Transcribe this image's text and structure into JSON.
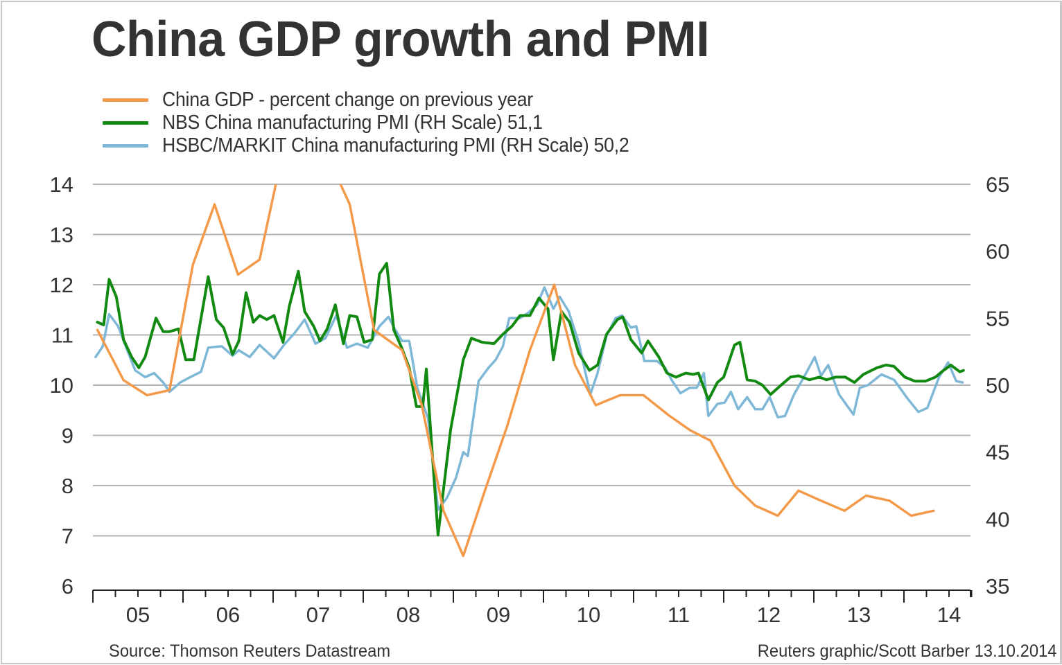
{
  "chart_data": {
    "type": "line",
    "title": "China GDP growth and PMI",
    "xlabel": "",
    "ylabel": "",
    "x_range": [
      2005.0,
      2014.8
    ],
    "x_tick_labels": [
      "05",
      "06",
      "07",
      "08",
      "09",
      "10",
      "11",
      "12",
      "13",
      "14"
    ],
    "x_tick_years": [
      2005,
      2006,
      2007,
      2008,
      2009,
      2010,
      2011,
      2012,
      2013,
      2014
    ],
    "y_left": {
      "range": [
        6,
        14
      ],
      "ticks": [
        "6",
        "7",
        "8",
        "9",
        "10",
        "11",
        "12",
        "13",
        "14"
      ]
    },
    "y_right": {
      "range": [
        35,
        65
      ],
      "ticks": [
        "35",
        "40",
        "45",
        "50",
        "55",
        "60",
        "65"
      ]
    },
    "grid": true,
    "legend_position": "top-left",
    "series": [
      {
        "name": "China GDP - percent change on previous year",
        "axis": "left",
        "color": "#f39a4a",
        "points": [
          [
            2005.05,
            11.1
          ],
          [
            2005.34,
            10.1
          ],
          [
            2005.6,
            9.8
          ],
          [
            2005.85,
            9.9
          ],
          [
            2006.11,
            12.4
          ],
          [
            2006.35,
            13.6
          ],
          [
            2006.61,
            12.2
          ],
          [
            2006.85,
            12.5
          ],
          [
            2007.15,
            15.0
          ],
          [
            2007.4,
            15.0
          ],
          [
            2007.62,
            14.5
          ],
          [
            2007.85,
            13.6
          ],
          [
            2008.12,
            11.1
          ],
          [
            2008.43,
            10.7
          ],
          [
            2008.65,
            9.6
          ],
          [
            2008.89,
            7.5
          ],
          [
            2009.11,
            6.6
          ],
          [
            2009.35,
            7.9
          ],
          [
            2009.6,
            9.2
          ],
          [
            2009.85,
            10.7
          ],
          [
            2010.12,
            12.0
          ],
          [
            2010.35,
            10.4
          ],
          [
            2010.58,
            9.6
          ],
          [
            2010.85,
            9.8
          ],
          [
            2011.11,
            9.8
          ],
          [
            2011.39,
            9.4
          ],
          [
            2011.63,
            9.1
          ],
          [
            2011.85,
            8.9
          ],
          [
            2012.12,
            8.0
          ],
          [
            2012.35,
            7.6
          ],
          [
            2012.6,
            7.4
          ],
          [
            2012.83,
            7.9
          ],
          [
            2013.08,
            7.7
          ],
          [
            2013.34,
            7.5
          ],
          [
            2013.58,
            7.8
          ],
          [
            2013.84,
            7.7
          ],
          [
            2014.08,
            7.4
          ],
          [
            2014.33,
            7.5
          ]
        ]
      },
      {
        "name": "NBS China manufacturing PMI (RH Scale)",
        "latest_value": "51,1",
        "axis": "right",
        "color": "#128a12",
        "points": [
          [
            2005.05,
            54.7
          ],
          [
            2005.12,
            54.5
          ],
          [
            2005.18,
            57.9
          ],
          [
            2005.26,
            56.6
          ],
          [
            2005.34,
            53.4
          ],
          [
            2005.43,
            52.1
          ],
          [
            2005.51,
            51.3
          ],
          [
            2005.58,
            52.1
          ],
          [
            2005.7,
            55.0
          ],
          [
            2005.78,
            54.0
          ],
          [
            2005.85,
            54.0
          ],
          [
            2005.95,
            54.2
          ],
          [
            2006.03,
            51.9
          ],
          [
            2006.12,
            51.9
          ],
          [
            2006.28,
            58.1
          ],
          [
            2006.37,
            54.9
          ],
          [
            2006.45,
            54.3
          ],
          [
            2006.55,
            52.3
          ],
          [
            2006.62,
            53.3
          ],
          [
            2006.7,
            56.9
          ],
          [
            2006.78,
            54.7
          ],
          [
            2006.85,
            55.2
          ],
          [
            2006.93,
            54.9
          ],
          [
            2007.01,
            55.2
          ],
          [
            2007.11,
            53.2
          ],
          [
            2007.18,
            55.9
          ],
          [
            2007.28,
            58.5
          ],
          [
            2007.35,
            55.5
          ],
          [
            2007.45,
            54.4
          ],
          [
            2007.52,
            53.3
          ],
          [
            2007.6,
            54.2
          ],
          [
            2007.69,
            56.0
          ],
          [
            2007.78,
            53.1
          ],
          [
            2007.85,
            55.2
          ],
          [
            2007.93,
            55.1
          ],
          [
            2008.01,
            53.2
          ],
          [
            2008.1,
            53.4
          ],
          [
            2008.18,
            58.3
          ],
          [
            2008.26,
            59.1
          ],
          [
            2008.34,
            54.1
          ],
          [
            2008.42,
            52.9
          ],
          [
            2008.51,
            51.3
          ],
          [
            2008.59,
            48.4
          ],
          [
            2008.66,
            48.4
          ],
          [
            2008.7,
            51.2
          ],
          [
            2008.83,
            38.8
          ],
          [
            2008.97,
            46.7
          ],
          [
            2009.11,
            51.9
          ],
          [
            2009.2,
            53.5
          ],
          [
            2009.32,
            53.2
          ],
          [
            2009.45,
            53.1
          ],
          [
            2009.55,
            53.8
          ],
          [
            2009.65,
            54.4
          ],
          [
            2009.74,
            55.2
          ],
          [
            2009.85,
            55.2
          ],
          [
            2009.95,
            56.5
          ],
          [
            2010.05,
            55.7
          ],
          [
            2010.11,
            51.9
          ],
          [
            2010.2,
            55.5
          ],
          [
            2010.29,
            54.7
          ],
          [
            2010.39,
            52.4
          ],
          [
            2010.51,
            51.1
          ],
          [
            2010.6,
            51.5
          ],
          [
            2010.7,
            53.8
          ],
          [
            2010.82,
            54.9
          ],
          [
            2010.88,
            55.1
          ],
          [
            2010.97,
            53.4
          ],
          [
            2011.09,
            52.4
          ],
          [
            2011.16,
            53.3
          ],
          [
            2011.28,
            52.1
          ],
          [
            2011.37,
            50.9
          ],
          [
            2011.47,
            50.6
          ],
          [
            2011.58,
            50.9
          ],
          [
            2011.66,
            50.8
          ],
          [
            2011.72,
            50.9
          ],
          [
            2011.83,
            48.9
          ],
          [
            2011.93,
            50.2
          ],
          [
            2012.0,
            50.6
          ],
          [
            2012.12,
            53.0
          ],
          [
            2012.18,
            53.2
          ],
          [
            2012.26,
            50.4
          ],
          [
            2012.35,
            50.3
          ],
          [
            2012.43,
            50.0
          ],
          [
            2012.52,
            49.3
          ],
          [
            2012.62,
            49.9
          ],
          [
            2012.74,
            50.6
          ],
          [
            2012.83,
            50.7
          ],
          [
            2012.95,
            50.4
          ],
          [
            2013.06,
            50.6
          ],
          [
            2013.14,
            50.4
          ],
          [
            2013.24,
            50.6
          ],
          [
            2013.35,
            50.6
          ],
          [
            2013.45,
            50.2
          ],
          [
            2013.55,
            50.8
          ],
          [
            2013.7,
            51.3
          ],
          [
            2013.8,
            51.5
          ],
          [
            2013.89,
            51.4
          ],
          [
            2014.01,
            50.6
          ],
          [
            2014.12,
            50.3
          ],
          [
            2014.24,
            50.3
          ],
          [
            2014.35,
            50.6
          ],
          [
            2014.42,
            51.0
          ],
          [
            2014.52,
            51.5
          ],
          [
            2014.62,
            51.0
          ],
          [
            2014.66,
            51.1
          ]
        ]
      },
      {
        "name": "HSBC/MARKIT China manufacturing PMI (RH Scale)",
        "latest_value": "50,2",
        "axis": "right",
        "color": "#7fb8d6",
        "points": [
          [
            2005.03,
            52.1
          ],
          [
            2005.11,
            52.9
          ],
          [
            2005.18,
            55.3
          ],
          [
            2005.28,
            54.4
          ],
          [
            2005.37,
            52.8
          ],
          [
            2005.47,
            51.1
          ],
          [
            2005.58,
            50.6
          ],
          [
            2005.68,
            50.9
          ],
          [
            2005.78,
            50.2
          ],
          [
            2005.85,
            49.5
          ],
          [
            2005.97,
            50.2
          ],
          [
            2006.08,
            50.6
          ],
          [
            2006.2,
            51.0
          ],
          [
            2006.28,
            52.8
          ],
          [
            2006.43,
            52.9
          ],
          [
            2006.55,
            52.2
          ],
          [
            2006.62,
            52.6
          ],
          [
            2006.74,
            52.1
          ],
          [
            2006.85,
            53.0
          ],
          [
            2007.01,
            52.0
          ],
          [
            2007.12,
            53.0
          ],
          [
            2007.24,
            53.9
          ],
          [
            2007.35,
            54.9
          ],
          [
            2007.47,
            53.1
          ],
          [
            2007.58,
            53.5
          ],
          [
            2007.7,
            55.2
          ],
          [
            2007.82,
            52.8
          ],
          [
            2007.93,
            53.1
          ],
          [
            2008.05,
            52.8
          ],
          [
            2008.18,
            54.4
          ],
          [
            2008.28,
            55.1
          ],
          [
            2008.35,
            54.2
          ],
          [
            2008.43,
            53.3
          ],
          [
            2008.51,
            53.3
          ],
          [
            2008.6,
            49.8
          ],
          [
            2008.72,
            47.5
          ],
          [
            2008.83,
            40.7
          ],
          [
            2008.93,
            41.6
          ],
          [
            2009.03,
            43.1
          ],
          [
            2009.11,
            45.0
          ],
          [
            2009.16,
            44.7
          ],
          [
            2009.28,
            50.3
          ],
          [
            2009.39,
            51.3
          ],
          [
            2009.47,
            51.9
          ],
          [
            2009.55,
            52.9
          ],
          [
            2009.62,
            55.0
          ],
          [
            2009.74,
            55.0
          ],
          [
            2009.83,
            55.4
          ],
          [
            2009.93,
            56.0
          ],
          [
            2010.01,
            57.3
          ],
          [
            2010.11,
            55.7
          ],
          [
            2010.18,
            56.6
          ],
          [
            2010.28,
            55.5
          ],
          [
            2010.39,
            53.2
          ],
          [
            2010.52,
            49.3
          ],
          [
            2010.6,
            50.9
          ],
          [
            2010.7,
            53.7
          ],
          [
            2010.8,
            55.0
          ],
          [
            2010.87,
            55.2
          ],
          [
            2010.97,
            54.3
          ],
          [
            2011.03,
            54.4
          ],
          [
            2011.12,
            51.8
          ],
          [
            2011.26,
            51.8
          ],
          [
            2011.35,
            51.3
          ],
          [
            2011.43,
            50.3
          ],
          [
            2011.52,
            49.4
          ],
          [
            2011.62,
            49.8
          ],
          [
            2011.7,
            49.8
          ],
          [
            2011.78,
            50.9
          ],
          [
            2011.83,
            47.7
          ],
          [
            2011.93,
            48.6
          ],
          [
            2012.01,
            48.7
          ],
          [
            2012.08,
            49.5
          ],
          [
            2012.16,
            48.2
          ],
          [
            2012.26,
            49.1
          ],
          [
            2012.35,
            48.2
          ],
          [
            2012.43,
            48.2
          ],
          [
            2012.51,
            49.1
          ],
          [
            2012.6,
            47.6
          ],
          [
            2012.68,
            47.7
          ],
          [
            2012.78,
            49.3
          ],
          [
            2012.89,
            50.6
          ],
          [
            2013.01,
            52.1
          ],
          [
            2013.08,
            50.7
          ],
          [
            2013.16,
            51.5
          ],
          [
            2013.28,
            49.3
          ],
          [
            2013.44,
            47.8
          ],
          [
            2013.51,
            49.8
          ],
          [
            2013.6,
            50.0
          ],
          [
            2013.75,
            50.8
          ],
          [
            2013.89,
            50.4
          ],
          [
            2014.04,
            49.0
          ],
          [
            2014.16,
            48.0
          ],
          [
            2014.26,
            48.3
          ],
          [
            2014.39,
            50.6
          ],
          [
            2014.49,
            51.7
          ],
          [
            2014.58,
            50.3
          ],
          [
            2014.65,
            50.2
          ]
        ]
      }
    ]
  },
  "legend": {
    "items": [
      {
        "label": "China GDP - percent change on previous year",
        "color": "#f39a4a"
      },
      {
        "label": "NBS China manufacturing PMI (RH Scale)  51,1",
        "color": "#128a12"
      },
      {
        "label": "HSBC/MARKIT China manufacturing PMI (RH Scale)  50,2",
        "color": "#7fb8d6"
      }
    ]
  },
  "footer": {
    "source": "Source: Thomson Reuters Datastream",
    "credit": "Reuters graphic/Scott Barber 13.10.2014"
  },
  "colors": {
    "grid": "#b4b4b4",
    "axis": "#222222",
    "text": "#333333"
  }
}
